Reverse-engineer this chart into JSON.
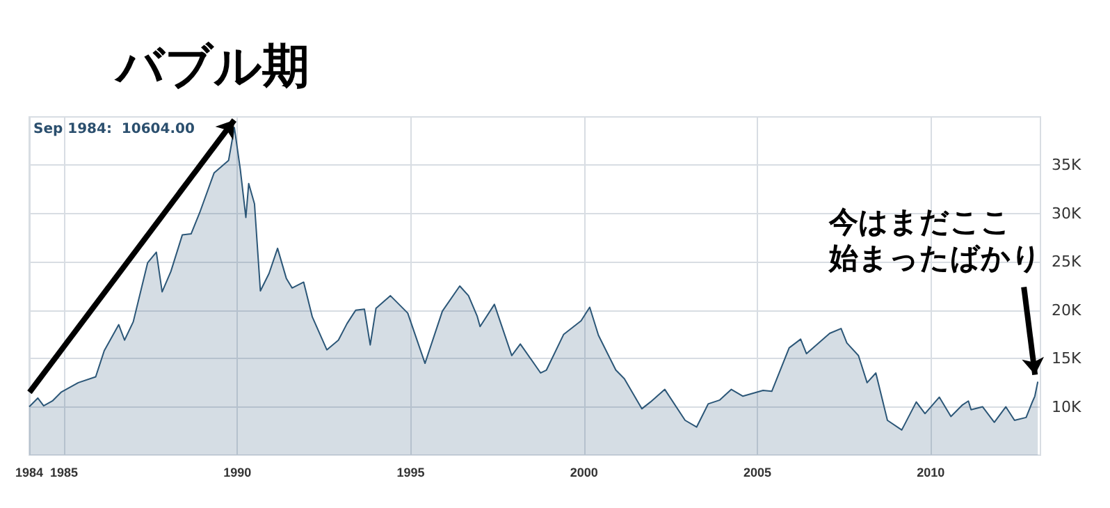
{
  "chart_data": {
    "type": "area",
    "x": [
      "1984-01",
      "1984-04",
      "1984-06",
      "1984-09",
      "1984-12",
      "1985-06",
      "1985-12",
      "1986-03",
      "1986-08",
      "1986-10",
      "1987-01",
      "1987-06",
      "1987-09",
      "1987-11",
      "1988-02",
      "1988-06",
      "1988-09",
      "1988-12",
      "1989-05",
      "1989-10",
      "1989-12",
      "1990-02",
      "1990-04",
      "1990-05",
      "1990-07",
      "1990-09",
      "1990-12",
      "1991-03",
      "1991-06",
      "1991-08",
      "1991-12",
      "1992-03",
      "1992-08",
      "1992-12",
      "1993-03",
      "1993-06",
      "1993-09",
      "1993-11",
      "1994-01",
      "1994-06",
      "1994-12",
      "1995-06",
      "1995-12",
      "1996-06",
      "1996-09",
      "1996-12",
      "1997-01",
      "1997-06",
      "1997-12",
      "1998-03",
      "1998-10",
      "1998-12",
      "1999-06",
      "1999-12",
      "2000-03",
      "2000-06",
      "2000-12",
      "2001-03",
      "2001-09",
      "2001-12",
      "2002-05",
      "2002-12",
      "2003-04",
      "2003-08",
      "2003-12",
      "2004-04",
      "2004-08",
      "2005-03",
      "2005-06",
      "2005-12",
      "2006-04",
      "2006-06",
      "2007-02",
      "2007-06",
      "2007-08",
      "2007-12",
      "2008-03",
      "2008-06",
      "2008-10",
      "2009-03",
      "2009-08",
      "2009-11",
      "2010-04",
      "2010-08",
      "2010-12",
      "2011-02",
      "2011-03",
      "2011-07",
      "2011-11",
      "2012-03",
      "2012-06",
      "2012-10",
      "2012-12",
      "2013-01",
      "2013-02"
    ],
    "series": [
      {
        "color": "#2b5677",
        "values": [
          10000,
          10900,
          10100,
          10600,
          11500,
          12500,
          13100,
          15800,
          18500,
          16900,
          18800,
          24900,
          26000,
          21900,
          24000,
          27800,
          27900,
          30100,
          34200,
          35500,
          38900,
          34600,
          29600,
          33100,
          31000,
          22000,
          23800,
          26400,
          23300,
          22300,
          22900,
          19300,
          15900,
          16900,
          18600,
          20000,
          20100,
          16400,
          20200,
          21500,
          19700,
          14500,
          19900,
          22500,
          21500,
          19400,
          18300,
          20600,
          15300,
          16500,
          13500,
          13800,
          17500,
          18900,
          20300,
          17400,
          13800,
          12900,
          9800,
          10500,
          11800,
          8600,
          7900,
          10300,
          10700,
          11800,
          11100,
          11700,
          11600,
          16100,
          17000,
          15500,
          17600,
          18100,
          16600,
          15300,
          12500,
          13500,
          8600,
          7600,
          10500,
          9300,
          11000,
          9000,
          10200,
          10600,
          9700,
          10000,
          8400,
          10000,
          8600,
          8900,
          10400,
          11100,
          12600
        ]
      }
    ],
    "xlim": [
      "1984-01",
      "2013-03"
    ],
    "xticks": [
      "1984",
      "1985",
      "1990",
      "1995",
      "2000",
      "2005",
      "2010"
    ],
    "ylim": [
      5000,
      40000
    ],
    "yticks": [
      {
        "value": 10000,
        "label": "10K"
      },
      {
        "value": 15000,
        "label": "15K"
      },
      {
        "value": 20000,
        "label": "20K"
      },
      {
        "value": 25000,
        "label": "25K"
      },
      {
        "value": 30000,
        "label": "30K"
      },
      {
        "value": 35000,
        "label": "35K"
      }
    ],
    "grid": true,
    "annotations": [
      "Sep 1984:  10604.00",
      {
        "text": "バブル期",
        "x": "1989-12",
        "y": 38900
      },
      "今はまだここ",
      {
        "text": "始まったばかり",
        "x": "2013-02",
        "y": 12600
      }
    ]
  }
}
